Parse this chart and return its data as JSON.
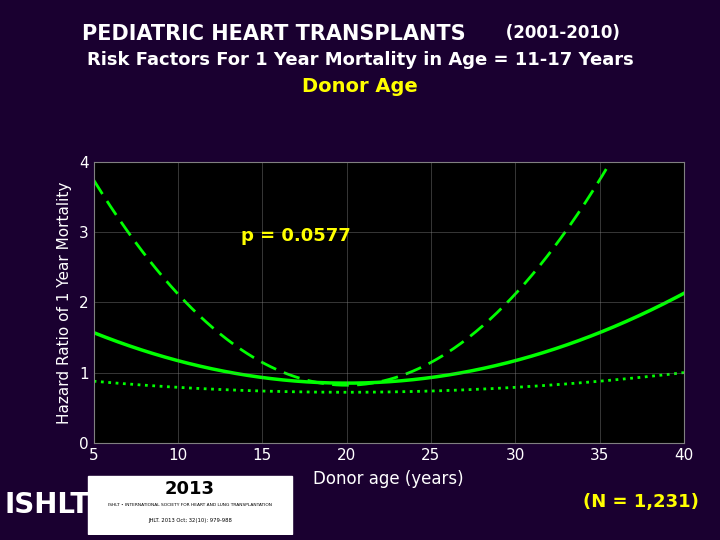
{
  "title_line1": "PEDIATRIC HEART TRANSPLANTS",
  "title_line1_suffix": " (2001-2010)",
  "title_line2": "Risk Factors For 1 Year Mortality in Age = 11-17 Years",
  "title_line3": "Donor Age",
  "xlabel": "Donor age (years)",
  "ylabel": "Hazard Ratio of 1 Year Mortality",
  "p_value_text": "p = 0.0577",
  "n_text": "(N = 1,231)",
  "xlim": [
    5,
    40
  ],
  "ylim": [
    0,
    4
  ],
  "xticks": [
    5,
    10,
    15,
    20,
    25,
    30,
    35,
    40
  ],
  "yticks": [
    0,
    1,
    2,
    3,
    4
  ],
  "background_color": "#1a0030",
  "plot_bg_color": "#000000",
  "title_color1": "#ffffff",
  "title_color3": "#ffff00",
  "line_color": "#00ff00",
  "annotation_color": "#ffff00",
  "n_color": "#ffff00",
  "grid_color": "#808080"
}
